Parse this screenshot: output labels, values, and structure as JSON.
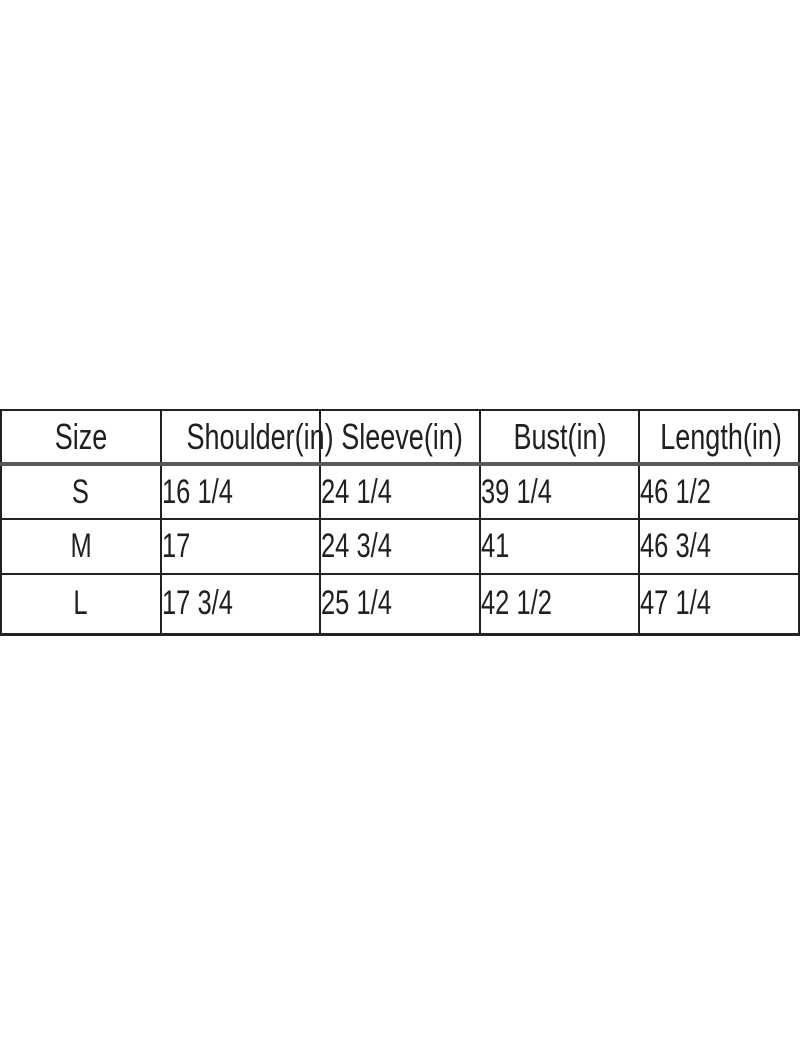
{
  "page": {
    "background": "#ffffff"
  },
  "colors": {
    "text": "#231f20",
    "grid_line_dark": "#231f20",
    "header_rule_gray": "#58595b"
  },
  "chart_data": {
    "type": "table",
    "title": "",
    "columns": [
      "Size",
      "Shoulder(in)",
      "Sleeve(in)",
      "Bust(in)",
      "Length(in)"
    ],
    "rows": [
      [
        "S",
        "16 1/4",
        "24 1/4",
        "39 1/4",
        "46 1/2"
      ],
      [
        "M",
        "17",
        "24 3/4",
        "41",
        "46 3/4"
      ],
      [
        "L",
        "17 3/4",
        "25 1/4",
        "42 1/2",
        "47 1/4"
      ]
    ],
    "units": "inches",
    "layout": "full-width table, 5 equal columns, header row plus 3 size rows, grid on"
  }
}
